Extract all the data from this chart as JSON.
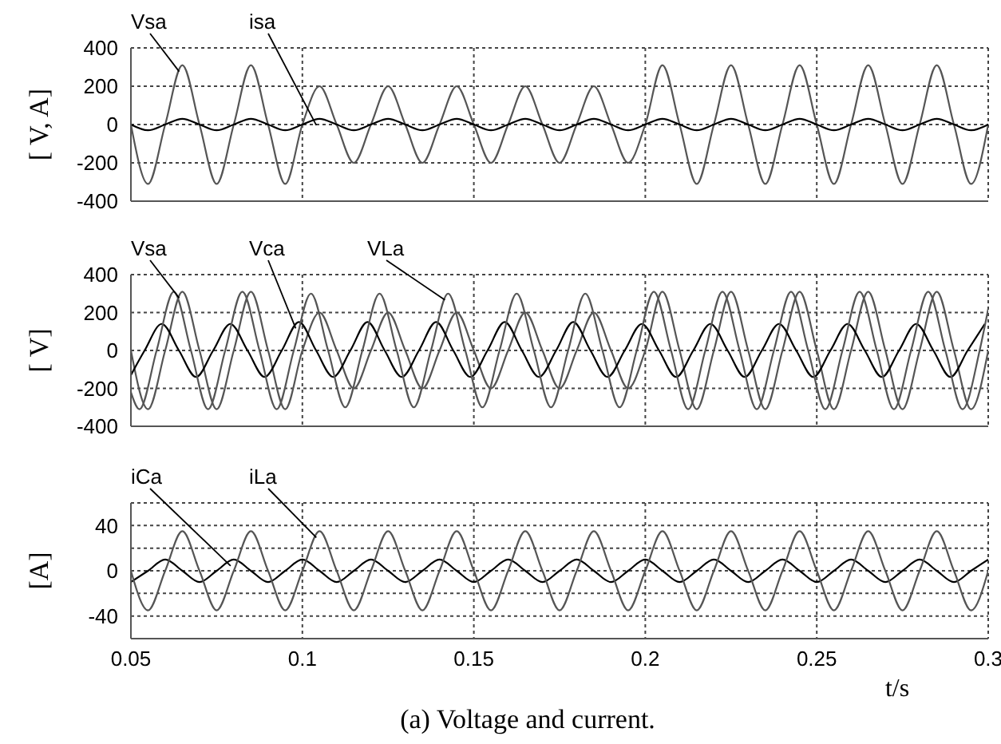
{
  "chart_data": [
    {
      "type": "line",
      "ylabel": "[ V, A]",
      "xlim": [
        0.05,
        0.3
      ],
      "xticks": [
        0.05,
        0.1,
        0.15,
        0.2,
        0.25,
        0.3
      ],
      "ylim": [
        -400,
        400
      ],
      "yticks": [
        -400,
        -200,
        0,
        200,
        400
      ],
      "grid": true,
      "tick_labels": "y",
      "x": [
        0.05,
        0.055,
        0.06,
        0.065,
        0.07,
        0.075,
        0.08,
        0.085,
        0.09,
        0.095,
        0.1,
        0.105,
        0.11,
        0.115,
        0.12,
        0.125,
        0.13,
        0.135,
        0.14,
        0.145,
        0.15,
        0.155,
        0.16,
        0.165,
        0.17,
        0.175,
        0.18,
        0.185,
        0.19,
        0.195,
        0.2,
        0.205,
        0.21,
        0.215,
        0.22,
        0.225,
        0.23,
        0.235,
        0.24,
        0.245,
        0.25,
        0.255,
        0.26,
        0.265,
        0.27,
        0.275,
        0.28,
        0.285,
        0.29,
        0.295,
        0.3
      ],
      "series": [
        {
          "name": "Vsa",
          "color": "#555555",
          "values": [
            0,
            -310,
            0,
            310,
            0,
            -310,
            0,
            310,
            0,
            -310,
            0,
            200,
            0,
            -200,
            0,
            200,
            0,
            -200,
            0,
            200,
            0,
            -200,
            0,
            200,
            0,
            -200,
            0,
            200,
            0,
            -200,
            0,
            310,
            0,
            -310,
            0,
            310,
            0,
            -310,
            0,
            310,
            0,
            -310,
            0,
            310,
            0,
            -310,
            0,
            310,
            0,
            -310,
            0
          ]
        },
        {
          "name": "isa",
          "color": "#000000",
          "values": [
            0,
            -30,
            0,
            30,
            0,
            -30,
            0,
            30,
            0,
            -30,
            0,
            30,
            0,
            -30,
            0,
            30,
            0,
            -30,
            0,
            30,
            0,
            -30,
            0,
            30,
            0,
            -30,
            0,
            30,
            0,
            -30,
            0,
            30,
            0,
            -30,
            0,
            30,
            0,
            -30,
            0,
            30,
            0,
            -30,
            0,
            30,
            0,
            -30,
            0,
            30,
            0,
            -30,
            0
          ]
        }
      ]
    },
    {
      "type": "line",
      "ylabel": "[ V]",
      "xlim": [
        0.05,
        0.3
      ],
      "xticks": [
        0.05,
        0.1,
        0.15,
        0.2,
        0.25,
        0.3
      ],
      "ylim": [
        -400,
        400
      ],
      "yticks": [
        -400,
        -200,
        0,
        200,
        400
      ],
      "grid": true,
      "tick_labels": "y",
      "x": [
        0.05,
        0.055,
        0.06,
        0.065,
        0.07,
        0.075,
        0.08,
        0.085,
        0.09,
        0.095,
        0.1,
        0.105,
        0.11,
        0.115,
        0.12,
        0.125,
        0.13,
        0.135,
        0.14,
        0.145,
        0.15,
        0.155,
        0.16,
        0.165,
        0.17,
        0.175,
        0.18,
        0.185,
        0.19,
        0.195,
        0.2,
        0.205,
        0.21,
        0.215,
        0.22,
        0.225,
        0.23,
        0.235,
        0.24,
        0.245,
        0.25,
        0.255,
        0.26,
        0.265,
        0.27,
        0.275,
        0.28,
        0.285,
        0.29,
        0.295,
        0.3
      ],
      "series": [
        {
          "name": "Vsa",
          "color": "#555555",
          "values": [
            0,
            -310,
            0,
            310,
            0,
            -310,
            0,
            310,
            0,
            -310,
            0,
            200,
            0,
            -200,
            0,
            200,
            0,
            -200,
            0,
            200,
            0,
            -200,
            0,
            200,
            0,
            -200,
            0,
            200,
            0,
            -200,
            0,
            310,
            0,
            -310,
            0,
            310,
            0,
            -310,
            0,
            310,
            0,
            -310,
            0,
            310,
            0,
            -310,
            0,
            310,
            0,
            -310,
            0
          ]
        },
        {
          "name": "Vca",
          "color": "#000000",
          "x": [
            0.05,
            0.054,
            0.059,
            0.064,
            0.069,
            0.074,
            0.079,
            0.084,
            0.089,
            0.094,
            0.099,
            0.104,
            0.109,
            0.114,
            0.119,
            0.124,
            0.129,
            0.134,
            0.139,
            0.144,
            0.149,
            0.154,
            0.159,
            0.164,
            0.169,
            0.174,
            0.179,
            0.184,
            0.189,
            0.194,
            0.199,
            0.204,
            0.209,
            0.214,
            0.219,
            0.224,
            0.229,
            0.234,
            0.239,
            0.244,
            0.249,
            0.254,
            0.259,
            0.264,
            0.269,
            0.274,
            0.279,
            0.284,
            0.289,
            0.294,
            0.299
          ],
          "values": [
            -130,
            0,
            140,
            0,
            -140,
            0,
            140,
            0,
            -140,
            0,
            150,
            0,
            -140,
            0,
            150,
            0,
            -140,
            0,
            150,
            0,
            -140,
            0,
            150,
            0,
            -140,
            0,
            150,
            0,
            -140,
            0,
            140,
            0,
            -140,
            0,
            140,
            0,
            -140,
            0,
            140,
            0,
            -140,
            0,
            140,
            0,
            -140,
            0,
            140,
            0,
            -140,
            0,
            140
          ]
        },
        {
          "name": "VLa",
          "color": "#555555",
          "x": [
            0.05,
            0.0525,
            0.0575,
            0.0625,
            0.0675,
            0.0725,
            0.0775,
            0.0825,
            0.0875,
            0.0925,
            0.0975,
            0.1025,
            0.1075,
            0.1125,
            0.1175,
            0.1225,
            0.1275,
            0.1325,
            0.1375,
            0.1425,
            0.1475,
            0.1525,
            0.1575,
            0.1625,
            0.1675,
            0.1725,
            0.1775,
            0.1825,
            0.1875,
            0.1925,
            0.1975,
            0.2025,
            0.2075,
            0.2125,
            0.2175,
            0.2225,
            0.2275,
            0.2325,
            0.2375,
            0.2425,
            0.2475,
            0.2525,
            0.2575,
            0.2625,
            0.2675,
            0.2725,
            0.2775,
            0.2825,
            0.2875,
            0.2925,
            0.2975,
            0.3
          ],
          "values": [
            -220,
            -310,
            0,
            310,
            0,
            -310,
            0,
            310,
            0,
            -310,
            0,
            300,
            0,
            -300,
            0,
            300,
            0,
            -300,
            0,
            300,
            0,
            -300,
            0,
            300,
            0,
            -300,
            0,
            300,
            0,
            -300,
            0,
            310,
            0,
            -310,
            0,
            310,
            0,
            -310,
            0,
            310,
            0,
            -310,
            0,
            310,
            0,
            -310,
            0,
            310,
            0,
            -310,
            0,
            220
          ]
        }
      ]
    },
    {
      "type": "line",
      "ylabel": "[A]",
      "xlabel": "t/s",
      "annotations": [
        "(a) Voltage and current."
      ],
      "xlim": [
        0.05,
        0.3
      ],
      "xticks": [
        0.05,
        0.1,
        0.15,
        0.2,
        0.25,
        0.3
      ],
      "ylim": [
        -60,
        60
      ],
      "yticks": [
        -40,
        {
          "value": -20,
          "label": null
        },
        0,
        {
          "value": 20,
          "label": null
        },
        40
      ],
      "grid": true,
      "x": [
        0.05,
        0.055,
        0.06,
        0.065,
        0.07,
        0.075,
        0.08,
        0.085,
        0.09,
        0.095,
        0.1,
        0.105,
        0.11,
        0.115,
        0.12,
        0.125,
        0.13,
        0.135,
        0.14,
        0.145,
        0.15,
        0.155,
        0.16,
        0.165,
        0.17,
        0.175,
        0.18,
        0.185,
        0.19,
        0.195,
        0.2,
        0.205,
        0.21,
        0.215,
        0.22,
        0.225,
        0.23,
        0.235,
        0.24,
        0.245,
        0.25,
        0.255,
        0.26,
        0.265,
        0.27,
        0.275,
        0.28,
        0.285,
        0.29,
        0.295,
        0.3
      ],
      "series": [
        {
          "name": "iCa",
          "color": "#000000",
          "values": [
            -10,
            0,
            10,
            0,
            -10,
            0,
            10,
            0,
            -10,
            0,
            10,
            0,
            -10,
            0,
            10,
            0,
            -10,
            0,
            10,
            0,
            -10,
            0,
            10,
            0,
            -10,
            0,
            10,
            0,
            -10,
            0,
            10,
            0,
            -10,
            0,
            10,
            0,
            -10,
            0,
            10,
            0,
            -10,
            0,
            10,
            0,
            -10,
            0,
            10,
            0,
            -10,
            0,
            10
          ]
        },
        {
          "name": "iLa",
          "color": "#555555",
          "values": [
            0,
            -35,
            0,
            35,
            0,
            -35,
            0,
            35,
            0,
            -35,
            0,
            35,
            0,
            -35,
            0,
            35,
            0,
            -35,
            0,
            35,
            0,
            -35,
            0,
            35,
            0,
            -35,
            0,
            35,
            0,
            -35,
            0,
            35,
            0,
            -35,
            0,
            35,
            0,
            -35,
            0,
            35,
            0,
            -35,
            0,
            35,
            0,
            -35,
            0,
            35,
            0,
            -35,
            0
          ]
        }
      ]
    }
  ]
}
